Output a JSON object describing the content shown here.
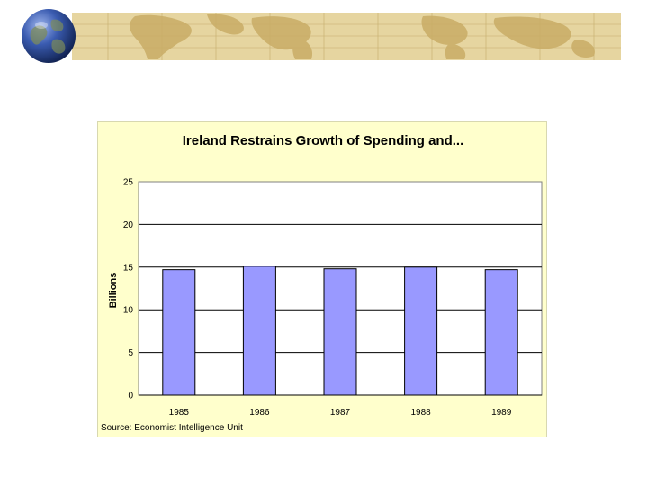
{
  "slide": {
    "globe_icon": "globe-icon",
    "banner_icon": "world-map-banner",
    "colors": {
      "banner": "#e6d5a0",
      "banner_land": "#c9ad66",
      "banner_grid": "#b89c58",
      "globe_ocean": "#2a4a9a",
      "globe_land": "#7c8b5a"
    }
  },
  "chart_data": {
    "type": "bar",
    "title": "Ireland Restrains Growth of Spending and...",
    "ylabel": "Billions",
    "xlabel": "",
    "categories": [
      "1985",
      "1986",
      "1987",
      "1988",
      "1989"
    ],
    "values": [
      14.7,
      15.1,
      14.8,
      15.0,
      14.7
    ],
    "ylim": [
      0,
      25
    ],
    "yticks": [
      "0",
      "5",
      "10",
      "15",
      "20",
      "25"
    ],
    "grid": true,
    "legend": "none",
    "source": "Source: Economist Intelligence Unit",
    "colors": {
      "bar": "#9999ff",
      "bar_edge": "#000000",
      "plot_background": "#ffffff",
      "panel_background": "#ffffcc",
      "gridline": "#000000"
    }
  }
}
